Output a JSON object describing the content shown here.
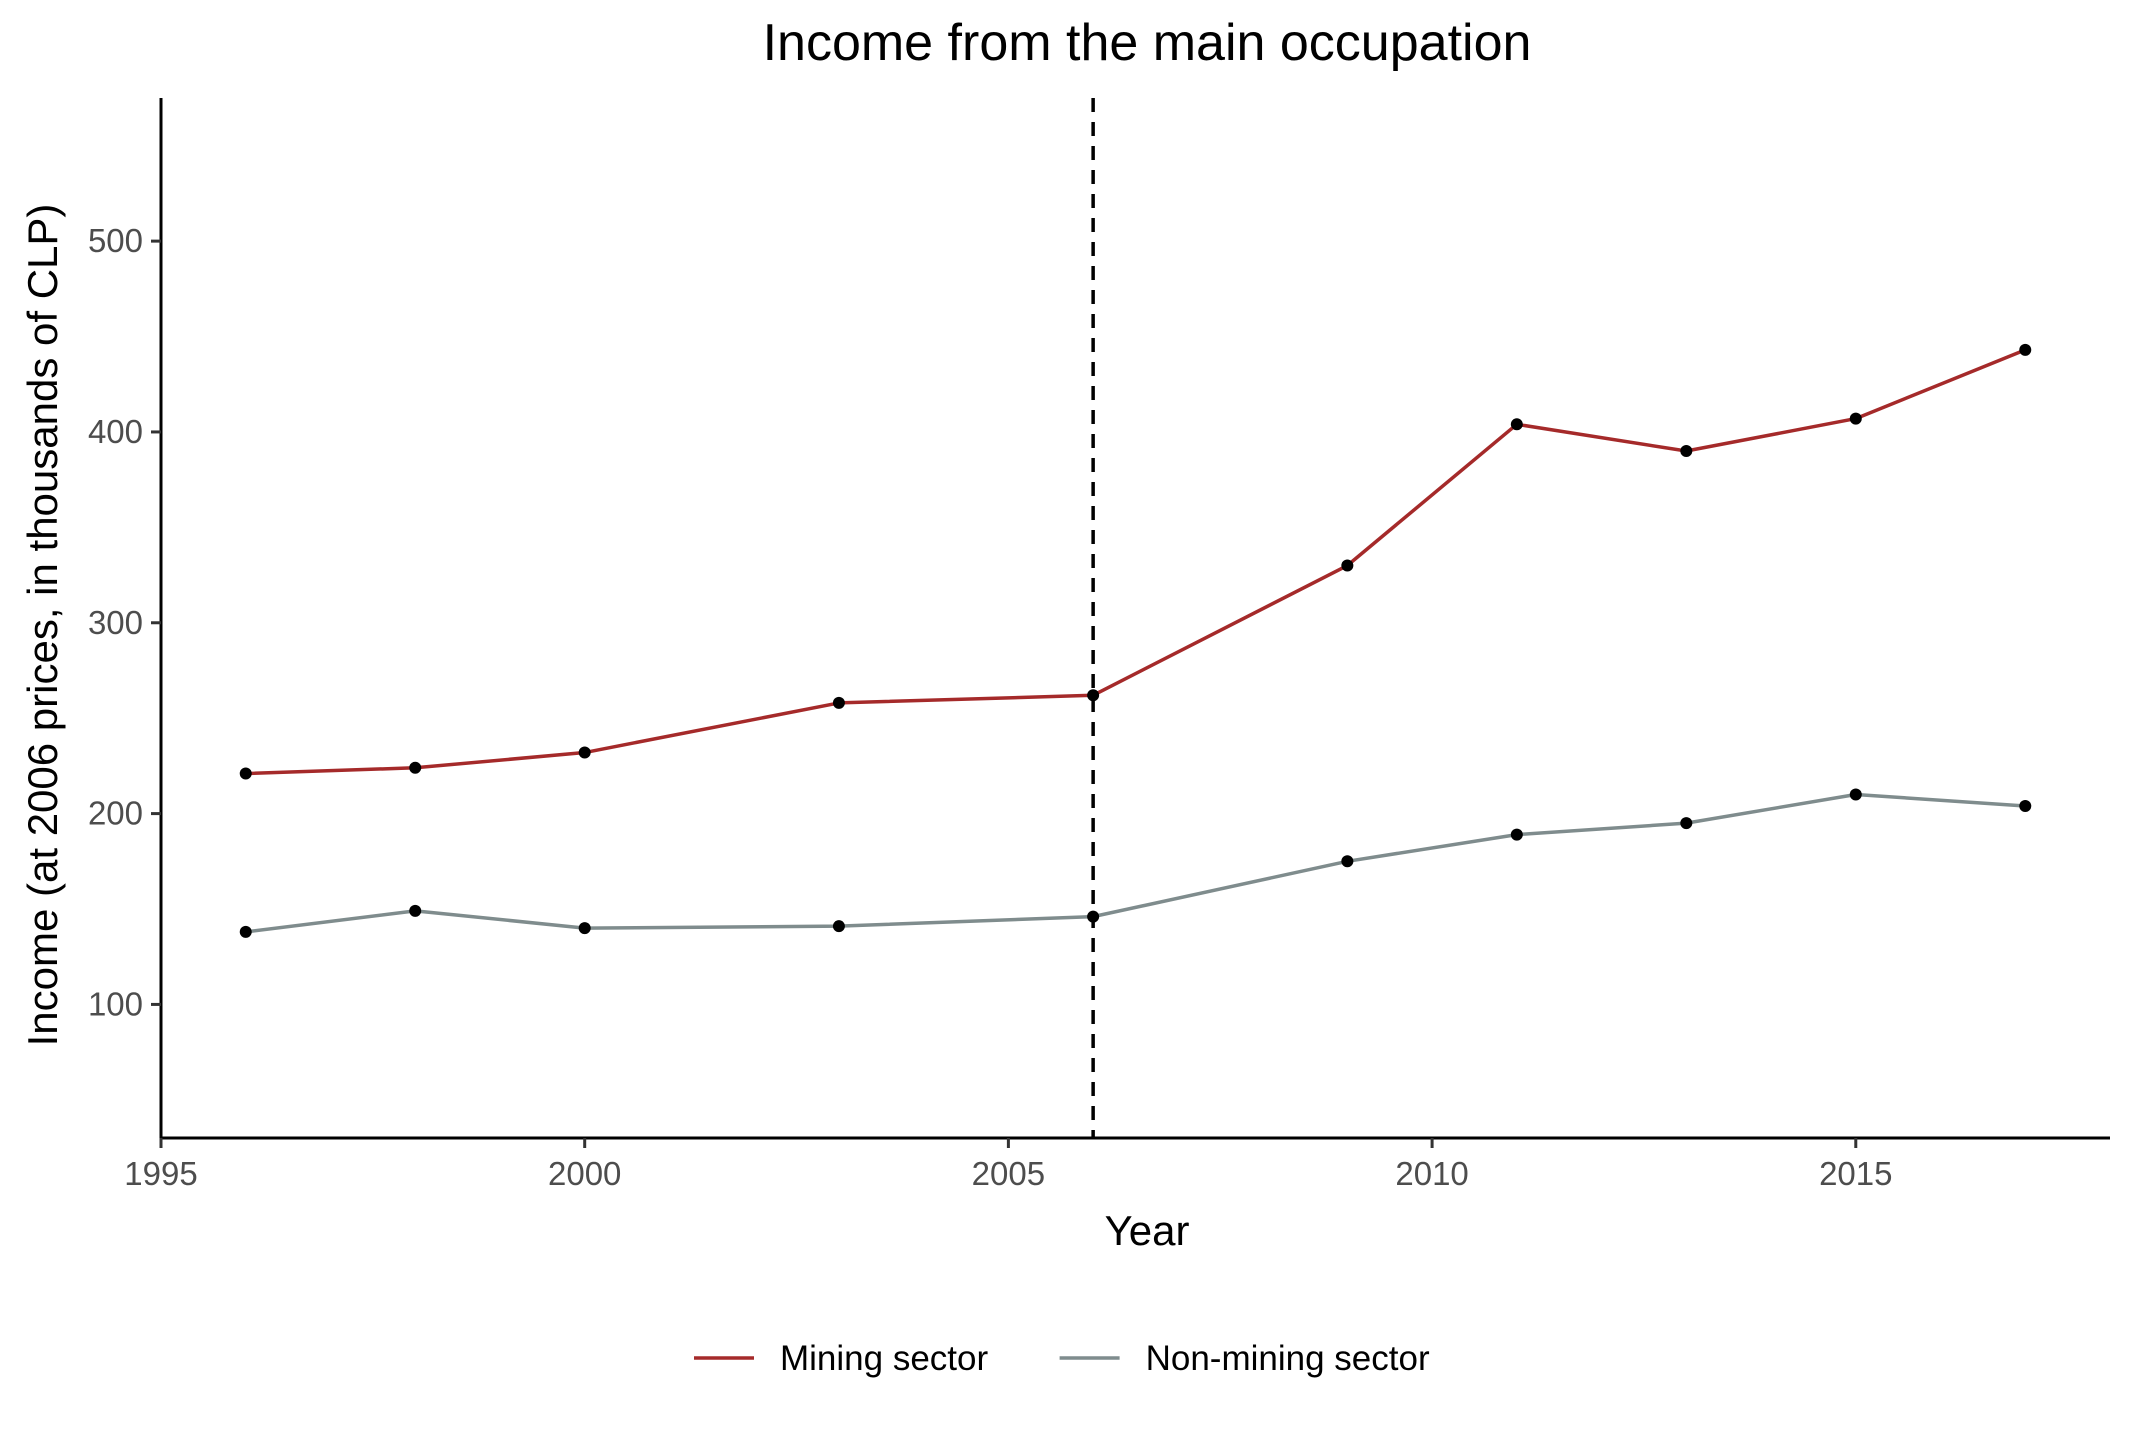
{
  "chart_data": {
    "type": "line",
    "title": "Income from the main occupation",
    "xlabel": "Year",
    "ylabel": "Income (at 2006 prices, in thousands of CLP)",
    "x": [
      1996,
      1998,
      2000,
      2003,
      2006,
      2009,
      2011,
      2013,
      2015,
      2017
    ],
    "xlim": [
      1995,
      2018
    ],
    "ylim": [
      30,
      575
    ],
    "xticks": [
      1995,
      2000,
      2005,
      2010,
      2015
    ],
    "yticks": [
      100,
      200,
      300,
      400,
      500
    ],
    "vline_x": 2006,
    "grid": false,
    "legend_position": "bottom",
    "point_color": "#000000",
    "series": [
      {
        "name": "Mining sector",
        "color": "#a52a2a",
        "values": [
          221,
          224,
          232,
          258,
          262,
          330,
          404,
          390,
          407,
          443
        ]
      },
      {
        "name": "Non-mining sector",
        "color": "#7f8c8d",
        "values": [
          138,
          149,
          140,
          141,
          146,
          175,
          189,
          195,
          210,
          204
        ]
      }
    ]
  }
}
